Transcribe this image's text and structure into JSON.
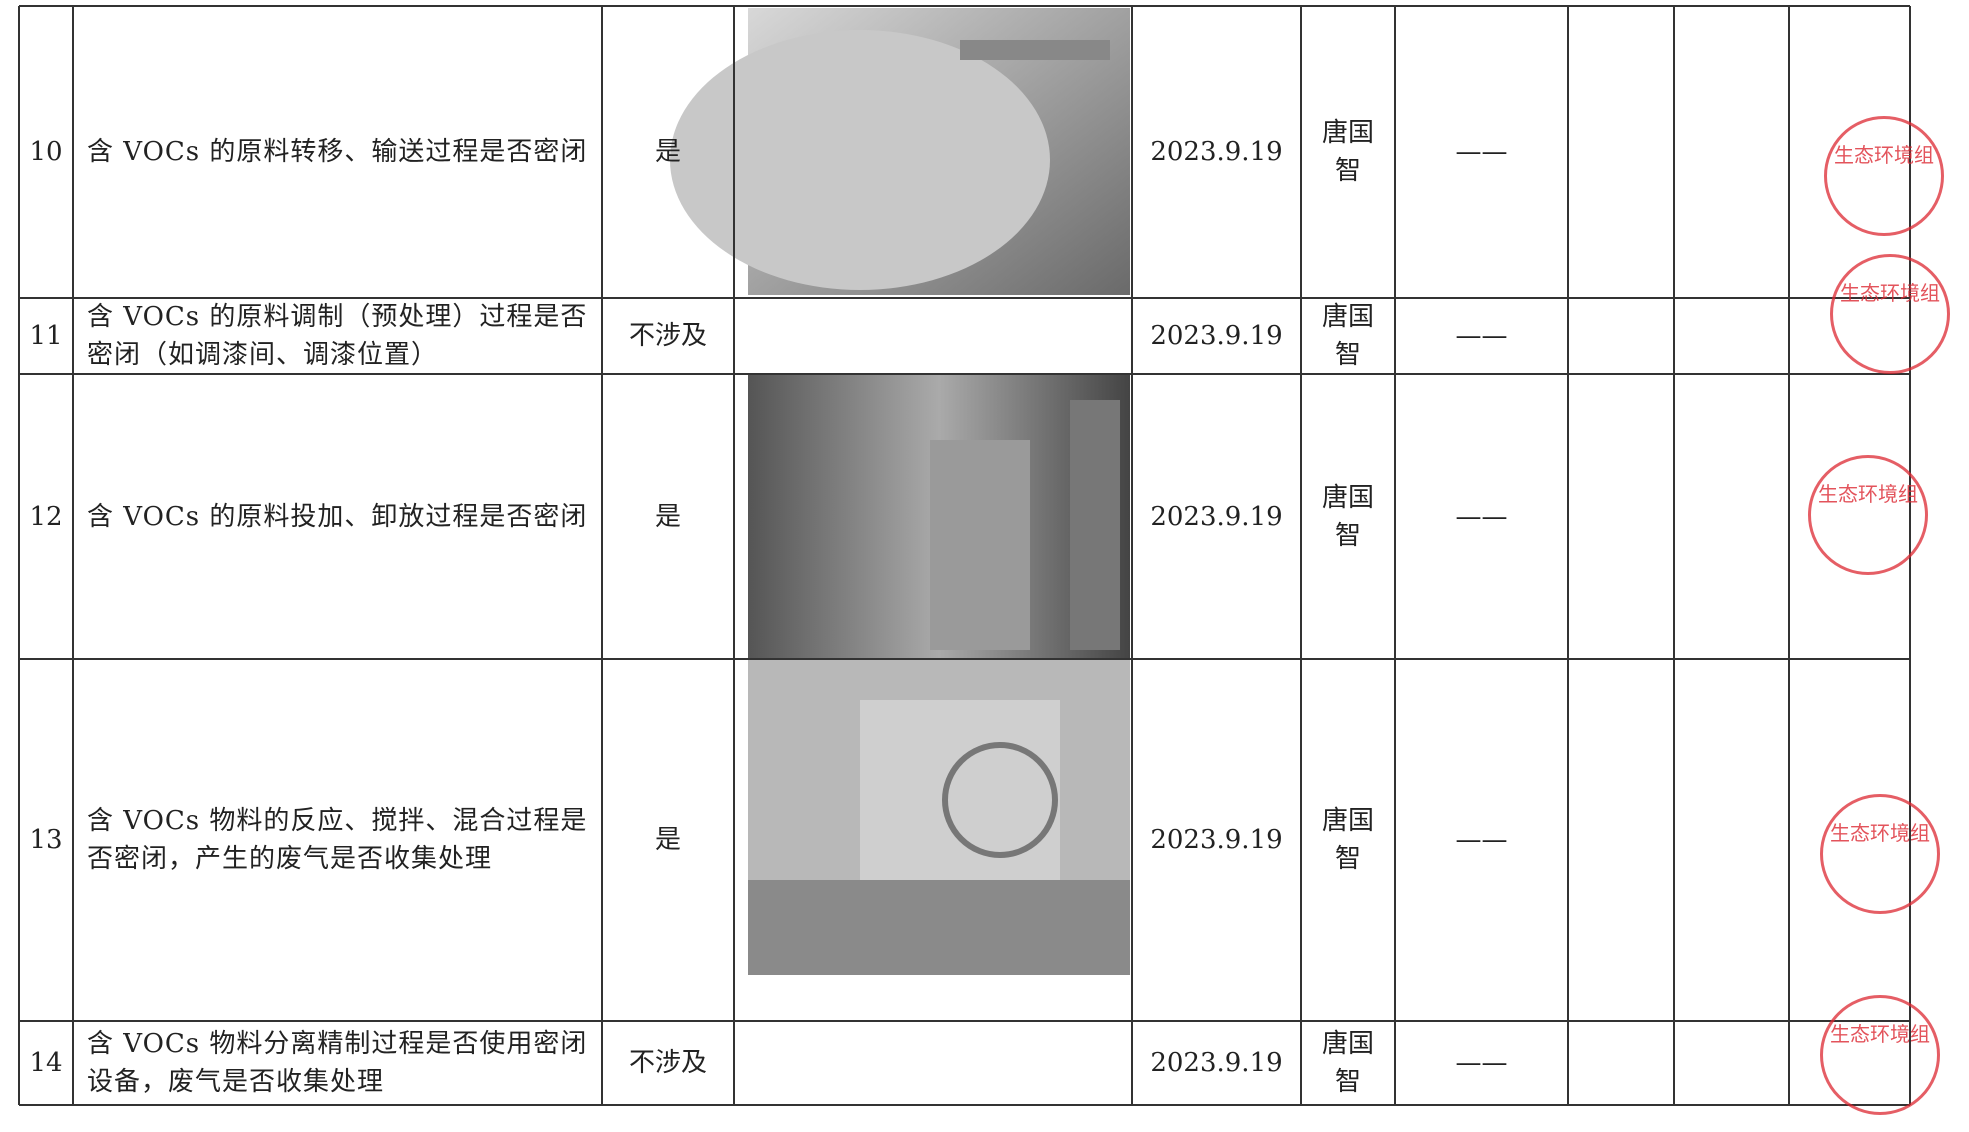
{
  "table": {
    "rows": [
      {
        "no": "10",
        "item": "含 VOCs 的原料转移、输送过程是否密闭",
        "answer": "是",
        "date": "2023.9.19",
        "inspector": "唐国智",
        "note": "——"
      },
      {
        "no": "11",
        "item": "含 VOCs 的原料调制（预处理）过程是否密闭（如调漆间、调漆位置）",
        "answer": "不涉及",
        "date": "2023.9.19",
        "inspector": "唐国智",
        "note": "——"
      },
      {
        "no": "12",
        "item": "含 VOCs 的原料投加、卸放过程是否密闭",
        "answer": "是",
        "date": "2023.9.19",
        "inspector": "唐国智",
        "note": "——"
      },
      {
        "no": "13",
        "item": "含 VOCs 物料的反应、搅拌、混合过程是否密闭，产生的废气是否收集处理",
        "answer": "是",
        "date": "2023.9.19",
        "inspector": "唐国智",
        "note": "——"
      },
      {
        "no": "14",
        "item": "含 VOCs 物料分离精制过程是否使用密闭设备，废气是否收集处理",
        "answer": "不涉及",
        "date": "2023.9.19",
        "inspector": "唐国智",
        "note": "——"
      }
    ]
  },
  "stamps": [
    {
      "text": "生态环境组"
    },
    {
      "text": "生态环境组"
    },
    {
      "text": "生态环境组"
    },
    {
      "text": "生态环境组"
    },
    {
      "text": "生态环境组"
    }
  ]
}
